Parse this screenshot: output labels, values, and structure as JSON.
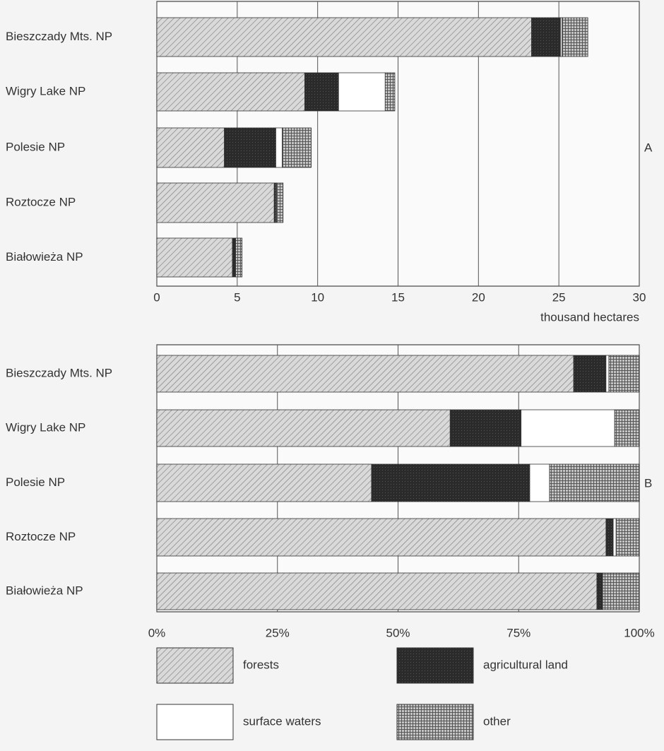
{
  "chart_data": [
    {
      "type": "stacked-bar-horizontal",
      "annotation": "A",
      "xlabel": "thousand hectares",
      "categories": [
        "Bieszczady Mts. NP",
        "Wigry Lake NP",
        "Polesie NP",
        "Roztocze NP",
        "Białowieża NP"
      ],
      "series": [
        {
          "name": "forests",
          "color": "#d9d9d9",
          "values": [
            23.3,
            9.2,
            4.2,
            7.3,
            4.7
          ]
        },
        {
          "name": "agricultural land",
          "color": "#2b2b2b",
          "values": [
            1.8,
            2.1,
            3.2,
            0.1,
            0.2
          ]
        },
        {
          "name": "surface waters",
          "color": "#ffffff",
          "values": [
            0.1,
            2.9,
            0.4,
            0.05,
            0
          ]
        },
        {
          "name": "other",
          "color": "#c4c4c4",
          "values": [
            1.6,
            0.6,
            1.8,
            0.4,
            0.4
          ]
        }
      ],
      "xlim": [
        0,
        30
      ],
      "xticks": [
        0,
        5,
        10,
        15,
        20,
        25,
        30
      ],
      "grid": true
    },
    {
      "type": "stacked-bar-horizontal",
      "annotation": "B",
      "categories": [
        "Bieszczady Mts. NP",
        "Wigry Lake NP",
        "Polesie NP",
        "Roztocze NP",
        "Białowieża NP"
      ],
      "series": [
        {
          "values": [
            86.4,
            60.8,
            44.5,
            93.1,
            91.2
          ]
        },
        {
          "values": [
            6.7,
            14.7,
            32.8,
            1.5,
            1.2
          ]
        },
        {
          "values": [
            0.6,
            19.4,
            4.1,
            0.6,
            0
          ]
        },
        {
          "values": [
            6.3,
            5.1,
            18.6,
            4.8,
            7.6
          ]
        }
      ],
      "xlim": [
        0,
        100
      ],
      "xticks": [
        {
          "value": 0,
          "label": "0%"
        },
        {
          "value": 25,
          "label": "25%"
        },
        {
          "value": 50,
          "label": "50%"
        },
        {
          "value": 75,
          "label": "75%"
        },
        {
          "value": 100,
          "label": "100%"
        }
      ],
      "grid": true
    }
  ]
}
